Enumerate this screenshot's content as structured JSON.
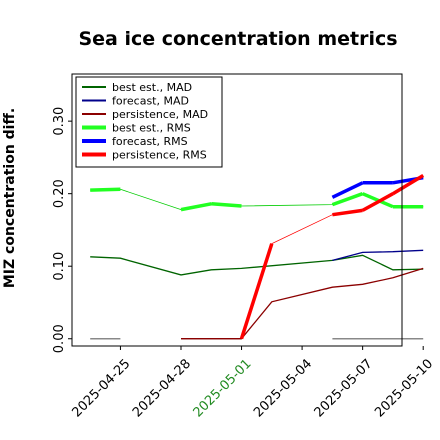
{
  "chart_data": {
    "type": "line",
    "title": "Sea ice concentration metrics",
    "xlabel": "",
    "ylabel": "MIZ concentration diff.",
    "xlim": [
      -0.6,
      10.3
    ],
    "ylim": [
      -0.01,
      0.365
    ],
    "x_ticks": [
      {
        "pos": 1,
        "label": "2025-04-25",
        "color": "#000000"
      },
      {
        "pos": 3,
        "label": "2025-04-28",
        "color": "#000000"
      },
      {
        "pos": 5,
        "label": "2025-05-01",
        "color": "#228B22"
      },
      {
        "pos": 7,
        "label": "2025-05-04",
        "color": "#000000"
      },
      {
        "pos": 9,
        "label": "2025-05-07",
        "color": "#000000"
      },
      {
        "pos": 11,
        "label": "2025-05-10",
        "color": "#000000"
      }
    ],
    "y_ticks": [
      {
        "value": 0.0,
        "label": "0.00"
      },
      {
        "value": 0.1,
        "label": "0.10"
      },
      {
        "value": 0.2,
        "label": "0.20"
      },
      {
        "value": 0.3,
        "label": "0.30"
      }
    ],
    "grid": false,
    "legend_position": "top-left",
    "series": [
      {
        "name": "best est., MAD",
        "color": "#006400",
        "width": 1.3,
        "legend_width": 2,
        "x": [
          0,
          1,
          3,
          4,
          5,
          8,
          9,
          10,
          11
        ],
        "y": [
          0.113,
          0.111,
          0.088,
          0.095,
          0.097,
          0.108,
          0.115,
          0.095,
          0.096
        ]
      },
      {
        "name": "forecast,  MAD",
        "color": "#00008B",
        "width": 1.3,
        "legend_width": 2,
        "x": [
          8,
          9,
          10,
          11
        ],
        "y": [
          0.108,
          0.119,
          0.12,
          0.122
        ]
      },
      {
        "name": "persistence, MAD",
        "color": "#8B0000",
        "width": 1.3,
        "legend_width": 2,
        "x": [
          3,
          4,
          5,
          6,
          8,
          9,
          10,
          11
        ],
        "y": [
          0.0,
          0.0,
          0.0,
          0.051,
          0.071,
          0.075,
          0.084,
          0.097
        ]
      },
      {
        "name": "best est., RMS",
        "color": "#22FF22",
        "width": 3.5,
        "legend_width": 4,
        "x": [
          0,
          1,
          3,
          4,
          5,
          8,
          9,
          10,
          11
        ],
        "y": [
          0.205,
          0.206,
          0.178,
          0.186,
          0.183,
          0.185,
          0.2,
          0.182,
          0.182
        ]
      },
      {
        "name": "forecast,  RMS",
        "color": "#0000FF",
        "width": 3.5,
        "legend_width": 4,
        "x": [
          8,
          9,
          10,
          11
        ],
        "y": [
          0.195,
          0.215,
          0.215,
          0.222
        ]
      },
      {
        "name": "persistence, RMS",
        "color": "#FF0000",
        "width": 3.5,
        "legend_width": 4,
        "x": [
          3,
          4,
          5,
          6,
          8,
          9,
          10,
          11
        ],
        "y": [
          0.0,
          0.0,
          0.0,
          0.131,
          0.171,
          0.177,
          0.2,
          0.225
        ]
      }
    ],
    "thin_links": [
      {
        "color": "#00CC00",
        "width": 0.8,
        "x": [
          0,
          1,
          3,
          4,
          5,
          8,
          9,
          10,
          11
        ],
        "y": [
          0.205,
          0.206,
          0.178,
          0.186,
          0.183,
          0.185,
          0.2,
          0.182,
          0.182
        ]
      },
      {
        "color": "#FF0000",
        "width": 0.8,
        "x": [
          3,
          4,
          5,
          6,
          8,
          9,
          10,
          11
        ],
        "y": [
          0.0,
          0.0,
          0.0,
          0.131,
          0.171,
          0.177,
          0.2,
          0.225
        ]
      }
    ],
    "baseline_marks": [
      {
        "color": "#888888",
        "x": [
          0,
          1
        ],
        "y": [
          0.0,
          0.0
        ]
      },
      {
        "color": "#888888",
        "x": [
          3,
          5
        ],
        "y": [
          0.0,
          0.0
        ]
      },
      {
        "color": "#888888",
        "x": [
          8,
          11
        ],
        "y": [
          0.0,
          0.0
        ]
      }
    ]
  }
}
